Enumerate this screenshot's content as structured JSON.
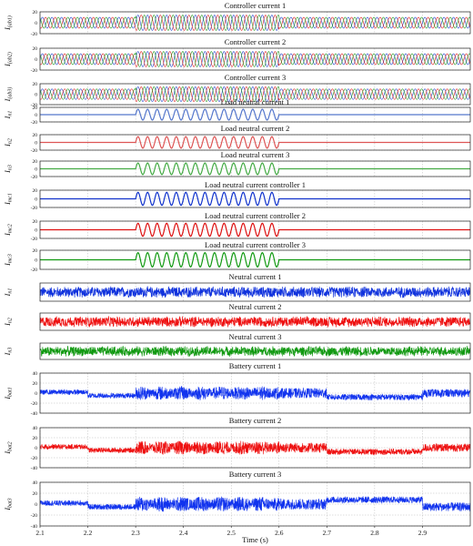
{
  "chart_data": {
    "type": "line",
    "x_range": [
      2.1,
      3.0
    ],
    "xlabel": "Time (s)",
    "x_ticks": [
      "2.1",
      "2.2",
      "2.3",
      "2.4",
      "2.5",
      "2.6",
      "2.7",
      "2.8",
      "2.9"
    ],
    "grid": true,
    "subplots": [
      {
        "title": "Controller current 1",
        "ylabel_main": "I",
        "ylabel_sub": "(ab1)",
        "ylim": [
          -20,
          20
        ],
        "y_ticks": [
          20,
          0,
          -20
        ],
        "series": [
          {
            "color": "#2244cc",
            "description": "three-phase sinusoid, amplitude ~10 A, rising to ~14 A between 2.3 s and 2.6 s"
          },
          {
            "color": "#dd2222"
          },
          {
            "color": "#229922"
          }
        ],
        "segments": [
          [
            2.1,
            2.3,
            10
          ],
          [
            2.3,
            2.6,
            14
          ],
          [
            2.6,
            3.0,
            10
          ]
        ]
      },
      {
        "title": "Controller current 2",
        "ylabel_main": "I",
        "ylabel_sub": "(ab2)",
        "ylim": [
          -20,
          20
        ],
        "y_ticks": [
          20,
          0,
          -20
        ],
        "series": [
          {
            "color": "#2244cc"
          },
          {
            "color": "#dd2222"
          },
          {
            "color": "#229922"
          }
        ],
        "segments": [
          [
            2.1,
            2.3,
            10
          ],
          [
            2.3,
            2.6,
            14
          ],
          [
            2.6,
            3.0,
            10
          ]
        ]
      },
      {
        "title": "Controller current 3",
        "ylabel_main": "I",
        "ylabel_sub": "(ab3)",
        "ylim": [
          -20,
          20
        ],
        "y_ticks": [
          20,
          0,
          -20
        ],
        "series": [
          {
            "color": "#2244cc"
          },
          {
            "color": "#dd2222"
          },
          {
            "color": "#229922"
          }
        ],
        "segments": [
          [
            2.1,
            2.3,
            10
          ],
          [
            2.3,
            2.6,
            14
          ],
          [
            2.6,
            3.0,
            10
          ]
        ]
      },
      {
        "title": "Load neutral current 1",
        "ylabel_main": "I",
        "ylabel_sub": "n1",
        "ylim": [
          -20,
          20
        ],
        "y_ticks": [
          20,
          0,
          -20
        ],
        "series": [
          {
            "color": "#5577cc"
          }
        ],
        "segments": [
          [
            2.1,
            2.3,
            0
          ],
          [
            2.3,
            2.6,
            15
          ],
          [
            2.6,
            3.0,
            0
          ]
        ]
      },
      {
        "title": "Load neutral current 2",
        "ylabel_main": "I",
        "ylabel_sub": "n2",
        "ylim": [
          -20,
          20
        ],
        "y_ticks": [
          20,
          0,
          -20
        ],
        "series": [
          {
            "color": "#dd5555"
          }
        ],
        "segments": [
          [
            2.1,
            2.3,
            0
          ],
          [
            2.3,
            2.6,
            15
          ],
          [
            2.6,
            3.0,
            0
          ]
        ]
      },
      {
        "title": "Load neutral current 3",
        "ylabel_main": "I",
        "ylabel_sub": "n3",
        "ylim": [
          -20,
          20
        ],
        "y_ticks": [
          20,
          0,
          -20
        ],
        "series": [
          {
            "color": "#44aa44"
          }
        ],
        "segments": [
          [
            2.1,
            2.3,
            0
          ],
          [
            2.3,
            2.6,
            15
          ],
          [
            2.6,
            3.0,
            0
          ]
        ]
      },
      {
        "title": "Load neutral current controller 1",
        "ylabel_main": "I",
        "ylabel_sub": "mc1",
        "ylim": [
          -20,
          20
        ],
        "y_ticks": [
          20,
          0,
          -20
        ],
        "series": [
          {
            "color": "#1133cc"
          }
        ],
        "segments": [
          [
            2.1,
            2.3,
            0
          ],
          [
            2.3,
            2.6,
            15
          ],
          [
            2.6,
            3.0,
            0
          ]
        ]
      },
      {
        "title": "Load neutral current controller 2",
        "ylabel_main": "I",
        "ylabel_sub": "mc2",
        "ylim": [
          -20,
          20
        ],
        "y_ticks": [
          20,
          0,
          -20
        ],
        "series": [
          {
            "color": "#dd1111"
          }
        ],
        "segments": [
          [
            2.1,
            2.3,
            0
          ],
          [
            2.3,
            2.6,
            15
          ],
          [
            2.6,
            3.0,
            0
          ]
        ]
      },
      {
        "title": "Load neutral current controller 3",
        "ylabel_main": "I",
        "ylabel_sub": "mc3",
        "ylim": [
          -20,
          20
        ],
        "y_ticks": [
          20,
          0,
          -20
        ],
        "series": [
          {
            "color": "#119911"
          }
        ],
        "segments": [
          [
            2.1,
            2.3,
            0
          ],
          [
            2.3,
            2.6,
            15
          ],
          [
            2.6,
            3.0,
            0
          ]
        ]
      },
      {
        "title": "Neutral current 1",
        "ylabel_main": "I",
        "ylabel_sub": "n1",
        "ylim": [
          -2,
          2
        ],
        "y_ticks": [],
        "series": [
          {
            "color": "#1133dd"
          }
        ],
        "noise_band": 0.55
      },
      {
        "title": "Neutral current 2",
        "ylabel_main": "I",
        "ylabel_sub": "n2",
        "ylim": [
          -2,
          2
        ],
        "y_ticks": [],
        "series": [
          {
            "color": "#ee1111"
          }
        ],
        "noise_band": 0.55
      },
      {
        "title": "Neutral current 3",
        "ylabel_main": "I",
        "ylabel_sub": "n3",
        "ylim": [
          -2,
          2
        ],
        "y_ticks": [],
        "series": [
          {
            "color": "#119911"
          }
        ],
        "noise_band": 0.55
      },
      {
        "title": "Battery current 1",
        "ylabel_main": "I",
        "ylabel_sub": "bat1",
        "ylim": [
          -40,
          40
        ],
        "y_ticks": [
          40,
          20,
          0,
          -20,
          -40
        ],
        "series": [
          {
            "color": "#1133ee"
          }
        ],
        "battery_segments": [
          [
            2.1,
            2.2,
            2,
            5
          ],
          [
            2.2,
            2.3,
            -5,
            5
          ],
          [
            2.3,
            2.6,
            0,
            14
          ],
          [
            2.6,
            2.7,
            0,
            10
          ],
          [
            2.7,
            2.9,
            -8,
            6
          ],
          [
            2.9,
            3.0,
            0,
            8
          ]
        ]
      },
      {
        "title": "Battery current 2",
        "ylabel_main": "I",
        "ylabel_sub": "bat2",
        "ylim": [
          -40,
          40
        ],
        "y_ticks": [
          40,
          20,
          0,
          -20,
          -40
        ],
        "series": [
          {
            "color": "#ee1111"
          }
        ],
        "battery_segments": [
          [
            2.1,
            2.2,
            2,
            5
          ],
          [
            2.2,
            2.3,
            -5,
            5
          ],
          [
            2.3,
            2.6,
            0,
            14
          ],
          [
            2.6,
            2.7,
            0,
            10
          ],
          [
            2.7,
            2.9,
            -8,
            6
          ],
          [
            2.9,
            3.0,
            0,
            8
          ]
        ]
      },
      {
        "title": "Battery current 3",
        "ylabel_main": "I",
        "ylabel_sub": "bat3",
        "ylim": [
          -40,
          40
        ],
        "y_ticks": [
          40,
          20,
          0,
          -20,
          -40
        ],
        "series": [
          {
            "color": "#1133ee"
          }
        ],
        "battery_segments": [
          [
            2.1,
            2.2,
            2,
            5
          ],
          [
            2.2,
            2.3,
            -5,
            5
          ],
          [
            2.3,
            2.6,
            0,
            14
          ],
          [
            2.6,
            2.7,
            0,
            10
          ],
          [
            2.7,
            2.9,
            8,
            6
          ],
          [
            2.9,
            3.0,
            -5,
            8
          ]
        ]
      }
    ]
  }
}
